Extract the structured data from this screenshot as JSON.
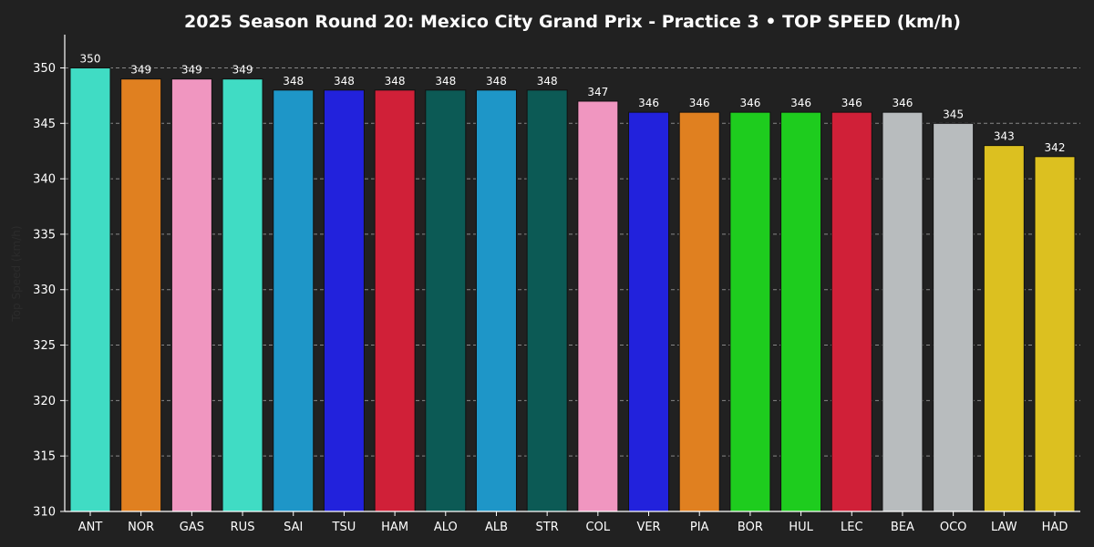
{
  "chart_data": {
    "type": "bar",
    "title": "2025 Season Round 20: Mexico City Grand Prix - Practice 3  •  TOP SPEED (km/h)",
    "xlabel": "",
    "ylabel": "Top Speed (km/h)",
    "ylim": [
      310,
      353
    ],
    "yticks": [
      310,
      315,
      320,
      325,
      330,
      335,
      340,
      345,
      350
    ],
    "grid": "y-dashed",
    "categories": [
      "ANT",
      "NOR",
      "GAS",
      "RUS",
      "SAI",
      "TSU",
      "HAM",
      "ALO",
      "ALB",
      "STR",
      "COL",
      "VER",
      "PIA",
      "BOR",
      "HUL",
      "LEC",
      "BEA",
      "OCO",
      "LAW",
      "HAD"
    ],
    "values": [
      350,
      349,
      349,
      349,
      348,
      348,
      348,
      348,
      348,
      348,
      347,
      346,
      346,
      346,
      346,
      346,
      346,
      345,
      343,
      342
    ],
    "colors": [
      "#40dcc4",
      "#e08020",
      "#f096c0",
      "#40dcc4",
      "#1e96c8",
      "#2222dc",
      "#d02038",
      "#0c5a55",
      "#1e96c8",
      "#0c5a55",
      "#f096c0",
      "#2222dc",
      "#e08020",
      "#1ecc1e",
      "#1ecc1e",
      "#d02038",
      "#b8bcbe",
      "#b8bcbe",
      "#dcc020",
      "#dcc020"
    ]
  },
  "style": {
    "background": "#212121",
    "axis_color": "#ffffff",
    "grid_color": "#888888",
    "text_color": "#ffffff"
  }
}
